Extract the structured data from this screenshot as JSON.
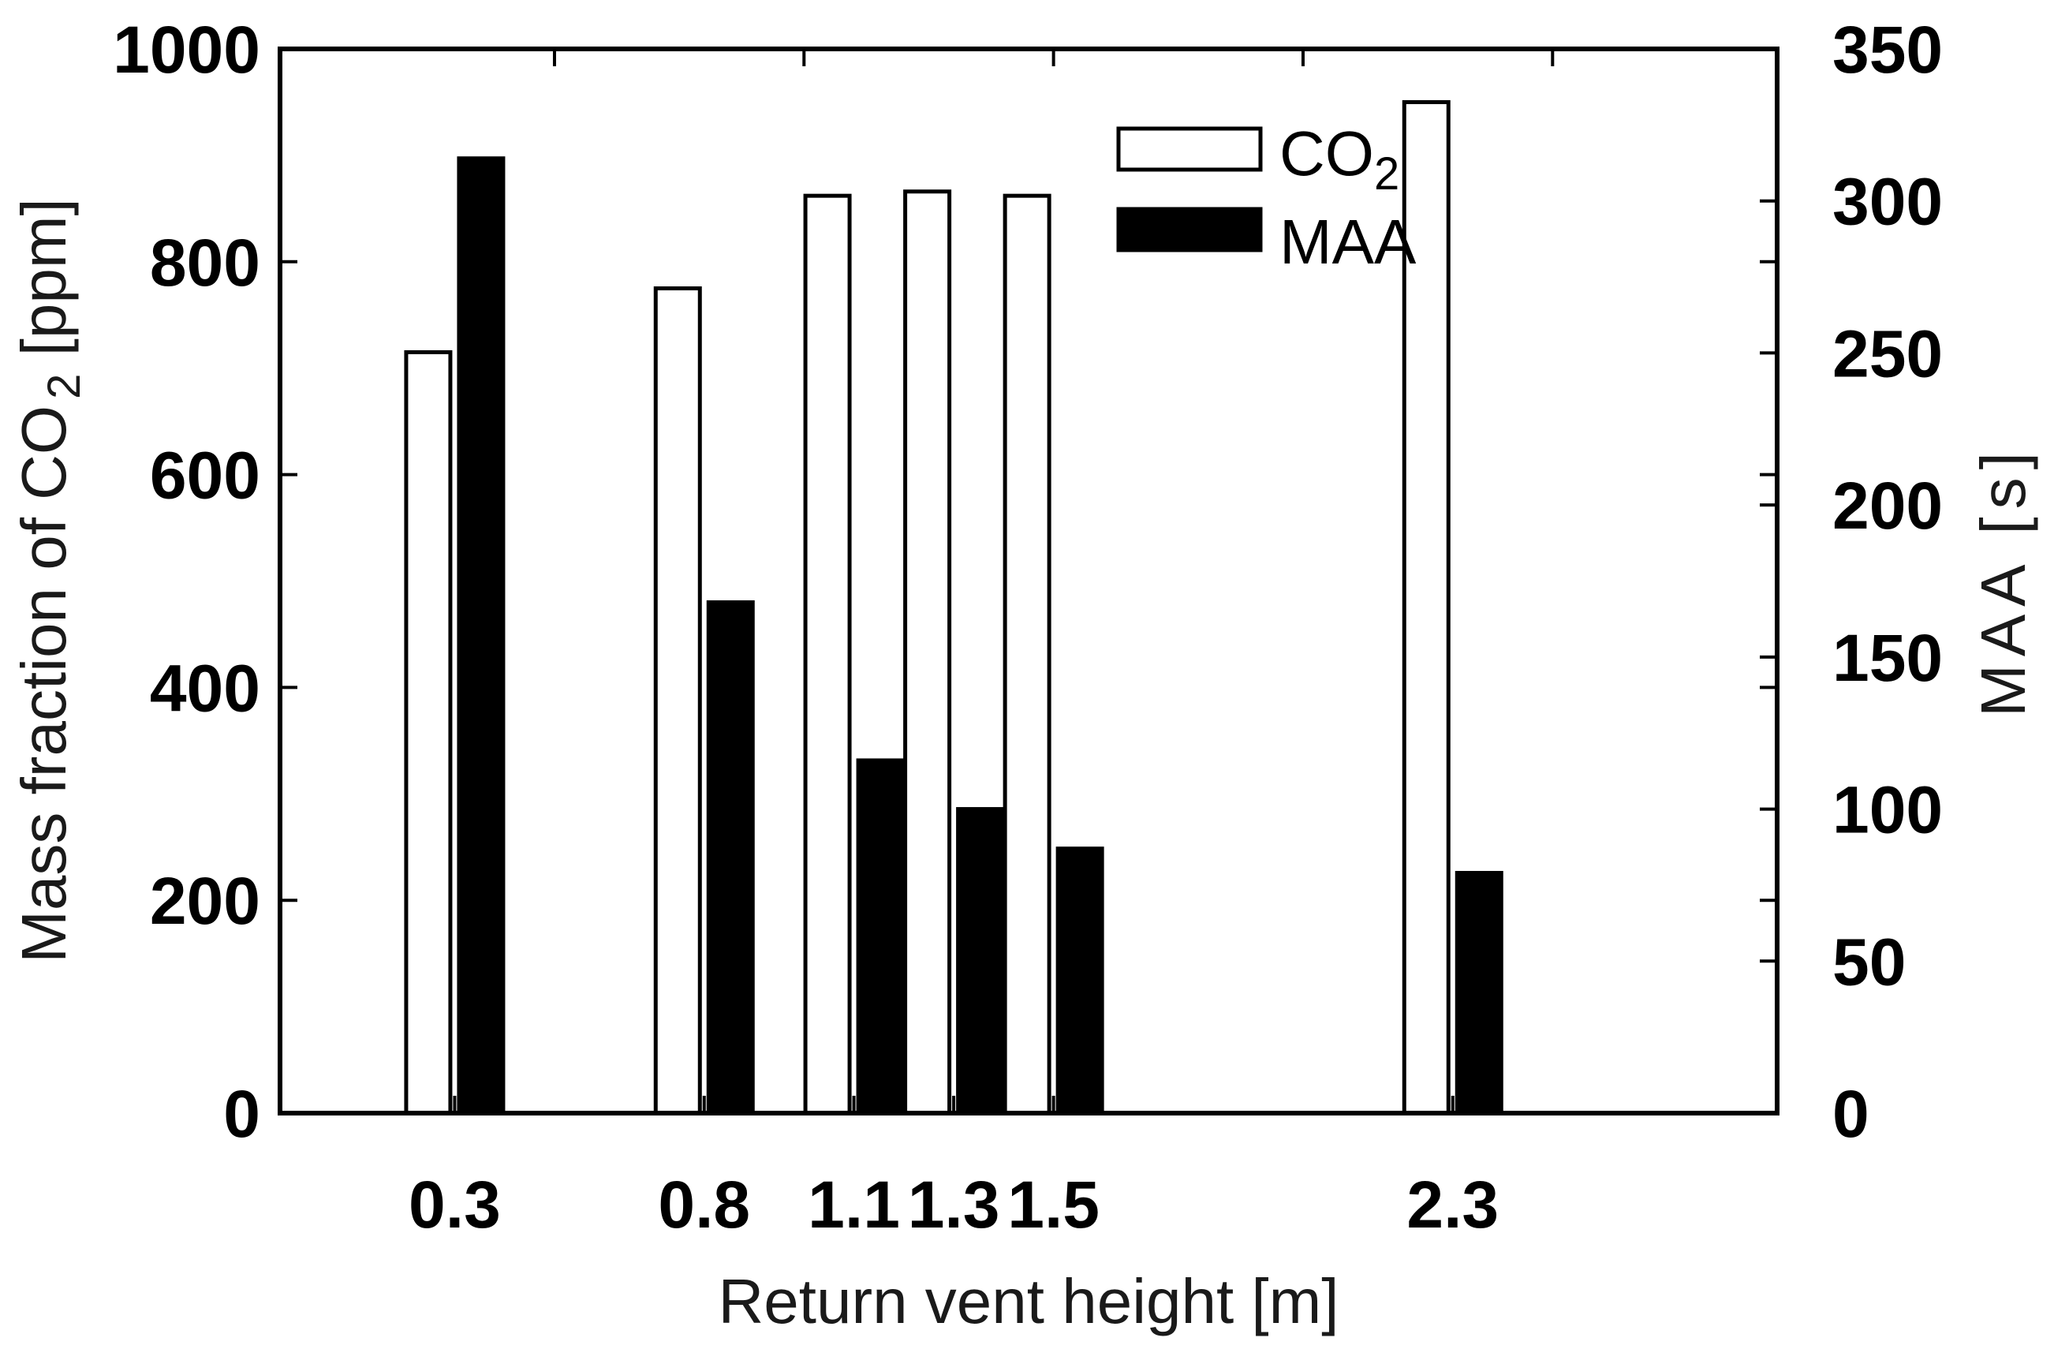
{
  "chart_data": {
    "type": "bar",
    "title": "",
    "xlabel": "Return vent height [m]",
    "ylabel": {
      "prefix": "Mass fraction of CO",
      "sub": "2",
      "suffix": " [ppm]"
    },
    "y2label": "MAA [s]",
    "categories": [
      0.3,
      0.8,
      1.1,
      1.3,
      1.5,
      2.3
    ],
    "category_labels": [
      "0.3",
      "0.8",
      "1.1",
      "1.3",
      "1.5",
      "2.3"
    ],
    "xlim": [
      -0.05,
      2.95
    ],
    "ylim": [
      0,
      1000
    ],
    "y2lim": [
      0,
      350
    ],
    "yticks": [
      0,
      200,
      400,
      600,
      800,
      1000
    ],
    "y2ticks": [
      0,
      50,
      100,
      150,
      200,
      250,
      300,
      350
    ],
    "series": [
      {
        "name": "CO2",
        "legend_base": "CO",
        "legend_sub": "2",
        "axis": "left",
        "fill": "#ffffff",
        "stroke": "#000000",
        "values": [
          715,
          775,
          862,
          866,
          862,
          950
        ]
      },
      {
        "name": "MAA",
        "legend_base": "MAA",
        "legend_sub": "",
        "axis": "right",
        "fill": "#000000",
        "stroke": "#000000",
        "values": [
          314,
          168,
          116,
          100,
          87,
          79
        ]
      }
    ],
    "legend_position": "top-center",
    "grid": false
  }
}
